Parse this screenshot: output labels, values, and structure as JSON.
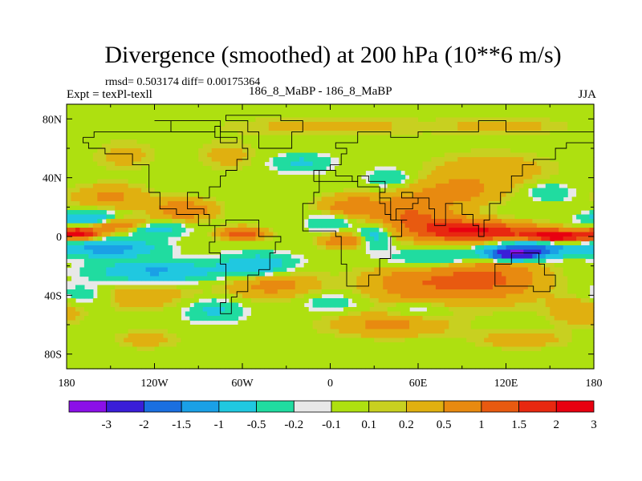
{
  "chart_data": {
    "type": "heatmap",
    "title": "Divergence (smoothed) at 200 hPa (10**6 m/s)",
    "stats_text": "rmsd= 0.503174 diff= 0.00175364",
    "left_label": "Expt = texPl-texll",
    "center_label": "186_8_MaBP - 186_8_MaBP",
    "right_label": "JJA",
    "xlim": [
      -180,
      180
    ],
    "ylim": [
      -90,
      90
    ],
    "x_ticks": [
      {
        "value": -180,
        "label": "180"
      },
      {
        "value": -120,
        "label": "120W"
      },
      {
        "value": -60,
        "label": "60W"
      },
      {
        "value": 0,
        "label": "0"
      },
      {
        "value": 60,
        "label": "60E"
      },
      {
        "value": 120,
        "label": "120E"
      },
      {
        "value": 180,
        "label": "180"
      }
    ],
    "y_ticks": [
      {
        "value": 80,
        "label": "80N"
      },
      {
        "value": 40,
        "label": "40N"
      },
      {
        "value": 0,
        "label": "0"
      },
      {
        "value": -40,
        "label": "40S"
      },
      {
        "value": -80,
        "label": "80S"
      }
    ],
    "colorbar": {
      "colors": [
        "#8b10e8",
        "#3a1ed8",
        "#1a6fe0",
        "#1aa0e6",
        "#20c8e0",
        "#20dca0",
        "#e8e8e8",
        "#aee010",
        "#c8d020",
        "#e0b010",
        "#e88a10",
        "#e85a10",
        "#e82810",
        "#e80010"
      ],
      "labels": [
        "-3",
        "-2",
        "-1.5",
        "-1",
        "-0.5",
        "-0.2",
        "-0.1",
        "0.1",
        "0.2",
        "0.5",
        "1",
        "1.5",
        "2",
        "3"
      ]
    },
    "features": [
      {
        "lon": 155,
        "lat": 0,
        "value": 2.6,
        "slon": 20,
        "slat": 4
      },
      {
        "lon": 110,
        "lat": 3,
        "value": 1.6,
        "slon": 35,
        "slat": 6
      },
      {
        "lon": 80,
        "lat": 5,
        "value": 1.1,
        "slon": 30,
        "slat": 8
      },
      {
        "lon": 55,
        "lat": 15,
        "value": 0.9,
        "slon": 25,
        "slat": 12
      },
      {
        "lon": 85,
        "lat": 30,
        "value": 0.6,
        "slon": 30,
        "slat": 10
      },
      {
        "lon": 15,
        "lat": 20,
        "value": 0.8,
        "slon": 22,
        "slat": 8
      },
      {
        "lon": 110,
        "lat": 45,
        "value": 0.4,
        "slon": 40,
        "slat": 12
      },
      {
        "lon": -172,
        "lat": 2,
        "value": 2.2,
        "slon": 14,
        "slat": 4
      },
      {
        "lon": -145,
        "lat": 8,
        "value": 1.1,
        "slon": 20,
        "slat": 5
      },
      {
        "lon": -60,
        "lat": 2,
        "value": 1.4,
        "slon": 15,
        "slat": 4
      },
      {
        "lon": -100,
        "lat": 18,
        "value": 0.9,
        "slon": 20,
        "slat": 7
      },
      {
        "lon": -150,
        "lat": 27,
        "value": 0.6,
        "slon": 25,
        "slat": 8
      },
      {
        "lon": 10,
        "lat": -3,
        "value": 1.0,
        "slon": 15,
        "slat": 5
      },
      {
        "lon": 108,
        "lat": -28,
        "value": 1.1,
        "slon": 35,
        "slat": 15
      },
      {
        "lon": 60,
        "lat": -32,
        "value": 0.8,
        "slon": 35,
        "slat": 14
      },
      {
        "lon": -40,
        "lat": -32,
        "value": 0.7,
        "slon": 30,
        "slat": 10
      },
      {
        "lon": -130,
        "lat": -40,
        "value": 0.4,
        "slon": 40,
        "slat": 10
      },
      {
        "lon": 40,
        "lat": -60,
        "value": 0.6,
        "slon": 40,
        "slat": 8
      },
      {
        "lon": 170,
        "lat": -50,
        "value": 0.5,
        "slon": 20,
        "slat": 10
      },
      {
        "lon": 130,
        "lat": -70,
        "value": 0.4,
        "slon": 30,
        "slat": 6
      },
      {
        "lon": -125,
        "lat": -70,
        "value": 0.35,
        "slon": 20,
        "slat": 6
      },
      {
        "lon": 0,
        "lat": 75,
        "value": 0.3,
        "slon": 70,
        "slat": 6
      },
      {
        "lon": 120,
        "lat": 75,
        "value": 0.3,
        "slon": 40,
        "slat": 6
      },
      {
        "lon": -70,
        "lat": 55,
        "value": 0.3,
        "slon": 20,
        "slat": 10
      },
      {
        "lon": -140,
        "lat": 55,
        "value": 0.3,
        "slon": 20,
        "slat": 10
      },
      {
        "lon": 125,
        "lat": -12,
        "value": -2.7,
        "slon": 18,
        "slat": 4
      },
      {
        "lon": 140,
        "lat": -8,
        "value": -1.5,
        "slon": 30,
        "slat": 6
      },
      {
        "lon": 75,
        "lat": -15,
        "value": -0.8,
        "slon": 35,
        "slat": 7
      },
      {
        "lon": -150,
        "lat": -8,
        "value": -1.3,
        "slon": 30,
        "slat": 6
      },
      {
        "lon": -120,
        "lat": -24,
        "value": -1.1,
        "slon": 40,
        "slat": 7
      },
      {
        "lon": -50,
        "lat": -20,
        "value": -1.0,
        "slon": 25,
        "slat": 8
      },
      {
        "lon": -165,
        "lat": 12,
        "value": -1.2,
        "slon": 20,
        "slat": 5
      },
      {
        "lon": -120,
        "lat": 5,
        "value": -0.8,
        "slon": 20,
        "slat": 5
      },
      {
        "lon": 30,
        "lat": 0,
        "value": -0.8,
        "slon": 12,
        "slat": 8
      },
      {
        "lon": 0,
        "lat": 10,
        "value": -0.6,
        "slon": 15,
        "slat": 6
      },
      {
        "lon": 40,
        "lat": 40,
        "value": -0.5,
        "slon": 15,
        "slat": 6
      },
      {
        "lon": -20,
        "lat": 50,
        "value": -0.6,
        "slon": 20,
        "slat": 6
      },
      {
        "lon": 150,
        "lat": 30,
        "value": -0.5,
        "slon": 15,
        "slat": 6
      },
      {
        "lon": -80,
        "lat": -50,
        "value": -0.6,
        "slon": 20,
        "slat": 8
      },
      {
        "lon": 60,
        "lat": -50,
        "value": -0.4,
        "slon": 20,
        "slat": 6
      },
      {
        "lon": -170,
        "lat": -40,
        "value": -0.5,
        "slon": 20,
        "slat": 8
      },
      {
        "lon": 0,
        "lat": -45,
        "value": -0.4,
        "slon": 20,
        "slat": 6
      }
    ],
    "coastlines": [
      [
        [
          -168,
          66
        ],
        [
          -160,
          70
        ],
        [
          -140,
          70
        ],
        [
          -125,
          70
        ],
        [
          -95,
          72
        ],
        [
          -80,
          75
        ],
        [
          -75,
          70
        ],
        [
          -60,
          60
        ],
        [
          -55,
          52
        ],
        [
          -65,
          45
        ],
        [
          -70,
          42
        ],
        [
          -76,
          35
        ],
        [
          -81,
          25
        ],
        [
          -90,
          30
        ],
        [
          -97,
          26
        ],
        [
          -97,
          18
        ],
        [
          -88,
          15
        ],
        [
          -83,
          9
        ],
        [
          -78,
          8
        ],
        [
          -90,
          15
        ],
        [
          -105,
          20
        ],
        [
          -115,
          30
        ],
        [
          -125,
          40
        ],
        [
          -125,
          48
        ],
        [
          -135,
          58
        ],
        [
          -152,
          60
        ],
        [
          -165,
          62
        ],
        [
          -168,
          66
        ]
      ],
      [
        [
          -78,
          8
        ],
        [
          -70,
          12
        ],
        [
          -60,
          10
        ],
        [
          -50,
          0
        ],
        [
          -35,
          -5
        ],
        [
          -38,
          -13
        ],
        [
          -41,
          -22
        ],
        [
          -48,
          -28
        ],
        [
          -57,
          -36
        ],
        [
          -65,
          -42
        ],
        [
          -68,
          -52
        ],
        [
          -72,
          -52
        ],
        [
          -75,
          -45
        ],
        [
          -72,
          -30
        ],
        [
          -70,
          -18
        ],
        [
          -76,
          -12
        ],
        [
          -81,
          -5
        ],
        [
          -80,
          0
        ],
        [
          -78,
          8
        ]
      ],
      [
        [
          -17,
          15
        ],
        [
          -17,
          21
        ],
        [
          -10,
          30
        ],
        [
          -6,
          36
        ],
        [
          10,
          37
        ],
        [
          20,
          32
        ],
        [
          32,
          31
        ],
        [
          35,
          25
        ],
        [
          43,
          12
        ],
        [
          51,
          11
        ],
        [
          50,
          0
        ],
        [
          40,
          -15
        ],
        [
          35,
          -25
        ],
        [
          28,
          -33
        ],
        [
          18,
          -34
        ],
        [
          12,
          -18
        ],
        [
          9,
          -1
        ],
        [
          5,
          5
        ],
        [
          -8,
          5
        ],
        [
          -17,
          15
        ]
      ],
      [
        [
          -10,
          36
        ],
        [
          -8,
          44
        ],
        [
          0,
          50
        ],
        [
          8,
          55
        ],
        [
          10,
          60
        ],
        [
          5,
          62
        ],
        [
          20,
          70
        ],
        [
          30,
          70
        ],
        [
          40,
          67
        ],
        [
          60,
          70
        ],
        [
          80,
          73
        ],
        [
          100,
          77
        ],
        [
          120,
          73
        ],
        [
          140,
          72
        ],
        [
          160,
          70
        ],
        [
          180,
          68
        ],
        [
          180,
          62
        ],
        [
          162,
          60
        ],
        [
          155,
          52
        ],
        [
          140,
          48
        ],
        [
          132,
          42
        ],
        [
          122,
          38
        ],
        [
          122,
          30
        ],
        [
          118,
          23
        ],
        [
          108,
          20
        ],
        [
          108,
          12
        ],
        [
          104,
          1
        ],
        [
          100,
          8
        ],
        [
          98,
          16
        ],
        [
          90,
          22
        ],
        [
          80,
          15
        ],
        [
          77,
          8
        ],
        [
          72,
          20
        ],
        [
          66,
          25
        ],
        [
          57,
          25
        ],
        [
          52,
          28
        ],
        [
          50,
          30
        ],
        [
          56,
          25
        ],
        [
          60,
          22
        ],
        [
          55,
          17
        ],
        [
          45,
          13
        ],
        [
          43,
          15
        ],
        [
          38,
          22
        ],
        [
          35,
          30
        ],
        [
          36,
          36
        ],
        [
          27,
          37
        ],
        [
          26,
          40
        ],
        [
          20,
          38
        ],
        [
          15,
          40
        ],
        [
          5,
          44
        ],
        [
          -10,
          36
        ]
      ],
      [
        [
          113,
          -22
        ],
        [
          114,
          -33
        ],
        [
          118,
          -35
        ],
        [
          130,
          -32
        ],
        [
          137,
          -34
        ],
        [
          140,
          -38
        ],
        [
          147,
          -38
        ],
        [
          150,
          -35
        ],
        [
          153,
          -28
        ],
        [
          153,
          -25
        ],
        [
          146,
          -18
        ],
        [
          142,
          -11
        ],
        [
          136,
          -12
        ],
        [
          130,
          -12
        ],
        [
          123,
          -17
        ],
        [
          113,
          -22
        ]
      ],
      [
        [
          -50,
          60
        ],
        [
          -40,
          60
        ],
        [
          -25,
          70
        ],
        [
          -20,
          80
        ],
        [
          -35,
          83
        ],
        [
          -60,
          82
        ],
        [
          -70,
          78
        ],
        [
          -55,
          70
        ],
        [
          -50,
          60
        ]
      ],
      [
        [
          -95,
          70
        ],
        [
          -80,
          68
        ],
        [
          -65,
          65
        ],
        [
          -75,
          80
        ],
        [
          -95,
          80
        ],
        [
          -120,
          78
        ],
        [
          -110,
          70
        ],
        [
          -95,
          70
        ]
      ]
    ]
  }
}
